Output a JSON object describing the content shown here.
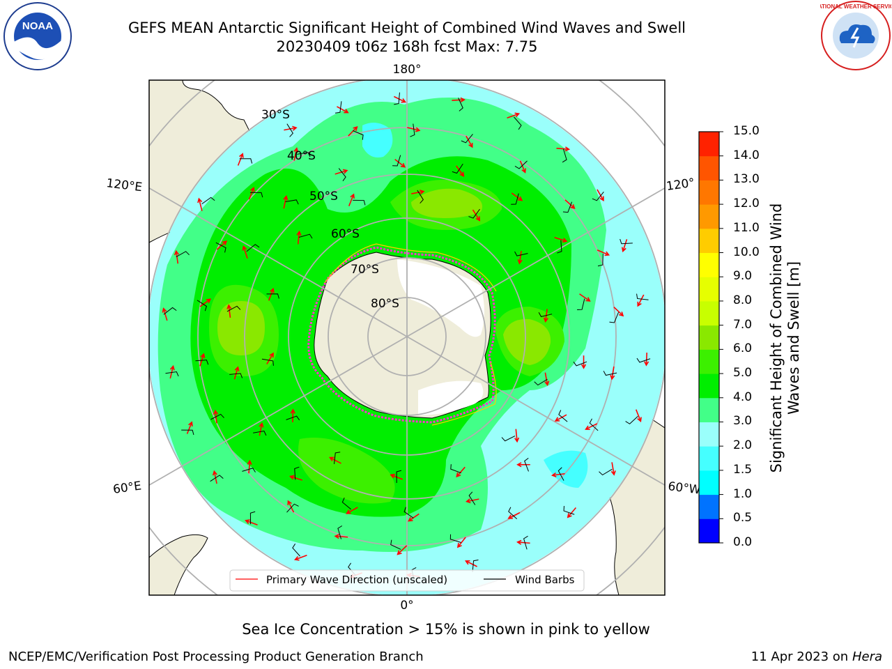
{
  "header": {
    "title_line1": "GEFS MEAN Antarctic Significant Height of Combined Wind Waves and Swell",
    "title_line2": "20230409 t06z 168h fcst   Max: 7.75"
  },
  "logos": {
    "left": {
      "icon": "noaa-logo",
      "text": "NOAA"
    },
    "right": {
      "icon": "nws-logo",
      "text": "NATIONAL WEATHER SERVICE"
    }
  },
  "map": {
    "projection": "south-polar-stereographic",
    "longitude_labels": {
      "top": "180°",
      "bottom": "0°",
      "upper_left": "120°E",
      "lower_left": "60°E",
      "upper_right": "120°",
      "lower_right": "60°W"
    },
    "latitude_labels": [
      "30°S",
      "40°S",
      "50°S",
      "60°S",
      "70°S",
      "80°S"
    ],
    "colors": {
      "land": "#efedda",
      "ice_edge": "#ff33cc",
      "wave_arrow": "#ff0000",
      "wind_barb": "#000000"
    }
  },
  "legend": {
    "primary_wave": "Primary Wave Direction (unscaled)",
    "wind_barbs": "Wind Barbs"
  },
  "colorbar": {
    "label": "Significant Height of Combined Wind Waves and Swell [m]",
    "ticks": [
      "0.0",
      "0.5",
      "1.0",
      "1.5",
      "2.0",
      "3.0",
      "4.0",
      "5.0",
      "6.0",
      "7.0",
      "8.0",
      "9.0",
      "10.0",
      "11.0",
      "12.0",
      "13.0",
      "14.0",
      "15.0"
    ],
    "colors": [
      "#0000ff",
      "#0073ff",
      "#00ffff",
      "#45ffff",
      "#9afffb",
      "#42ff88",
      "#00ee00",
      "#3cf000",
      "#8ae800",
      "#c8ff00",
      "#e6ff00",
      "#ffff00",
      "#ffcc00",
      "#ff9900",
      "#ff7700",
      "#ff5500",
      "#ff2200"
    ]
  },
  "footer": {
    "caption": "Sea Ice Concentration > 15% is shown in pink to yellow",
    "credit": "NCEP/EMC/Verification Post Processing Product Generation Branch",
    "date": "11 Apr 2023 on",
    "machine": "Hera"
  }
}
